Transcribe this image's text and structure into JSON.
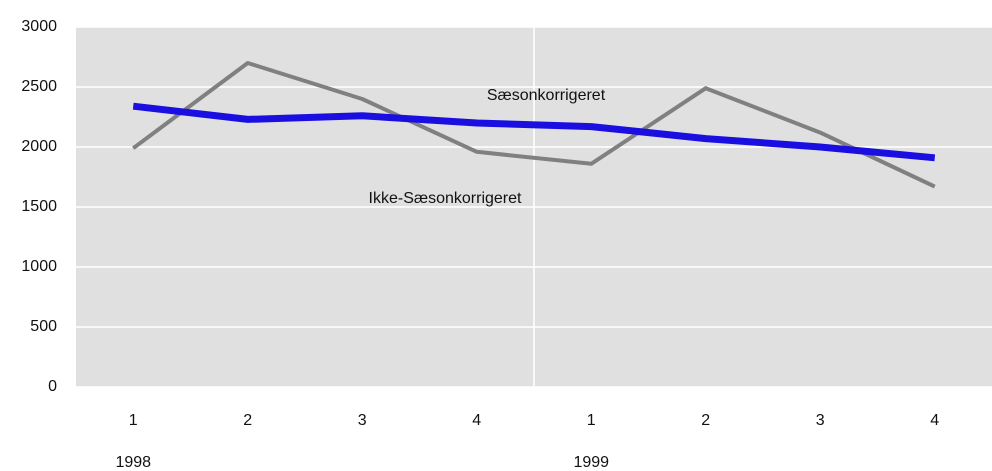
{
  "chart_data": {
    "type": "line",
    "categories": [
      "1",
      "2",
      "3",
      "4",
      "1",
      "2",
      "3",
      "4"
    ],
    "x_groups": [
      "1998",
      "1999"
    ],
    "series": [
      {
        "name": "Ikke-Sæsonkorrigeret",
        "color": "#808080",
        "values": [
          1990,
          2700,
          2400,
          1960,
          1860,
          2490,
          2120,
          1670
        ]
      },
      {
        "name": "Sæsonkorrigeret",
        "color": "#1a0fe0",
        "values": [
          2340,
          2230,
          2260,
          2200,
          2170,
          2070,
          2000,
          1910
        ]
      }
    ],
    "ylim": [
      0,
      3000
    ],
    "yticks": [
      0,
      500,
      1000,
      1500,
      2000,
      2500,
      3000
    ],
    "grid": true,
    "plot_background": "#e0e0e0"
  }
}
